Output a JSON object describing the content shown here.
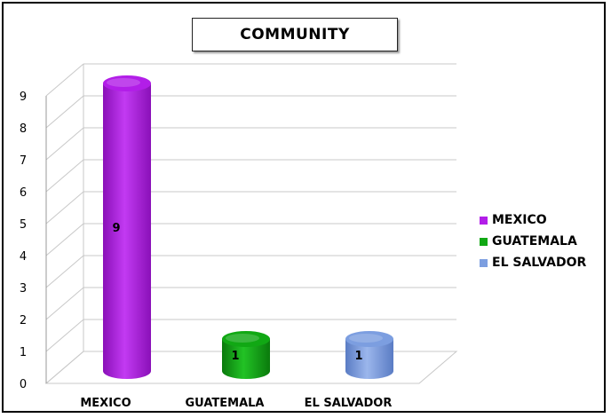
{
  "chart_data": {
    "type": "bar",
    "title": "COMMUNITY",
    "categories": [
      "MEXICO",
      "GUATEMALA",
      "EL SALVADOR"
    ],
    "values": [
      9,
      1,
      1
    ],
    "data_labels": [
      "9",
      "1",
      "1"
    ],
    "ylim": [
      0,
      9
    ],
    "yticks": [
      "0",
      "1",
      "2",
      "3",
      "4",
      "5",
      "6",
      "7",
      "8",
      "9"
    ],
    "grid": true,
    "legend_position": "right",
    "series_colors": [
      "#b21ee8",
      "#11a814",
      "#7c9ee0"
    ],
    "legend": [
      {
        "label": "MEXICO",
        "color": "#b21ee8"
      },
      {
        "label": "GUATEMALA",
        "color": "#11a814"
      },
      {
        "label": "EL SALVADOR",
        "color": "#7c9ee0"
      }
    ]
  }
}
